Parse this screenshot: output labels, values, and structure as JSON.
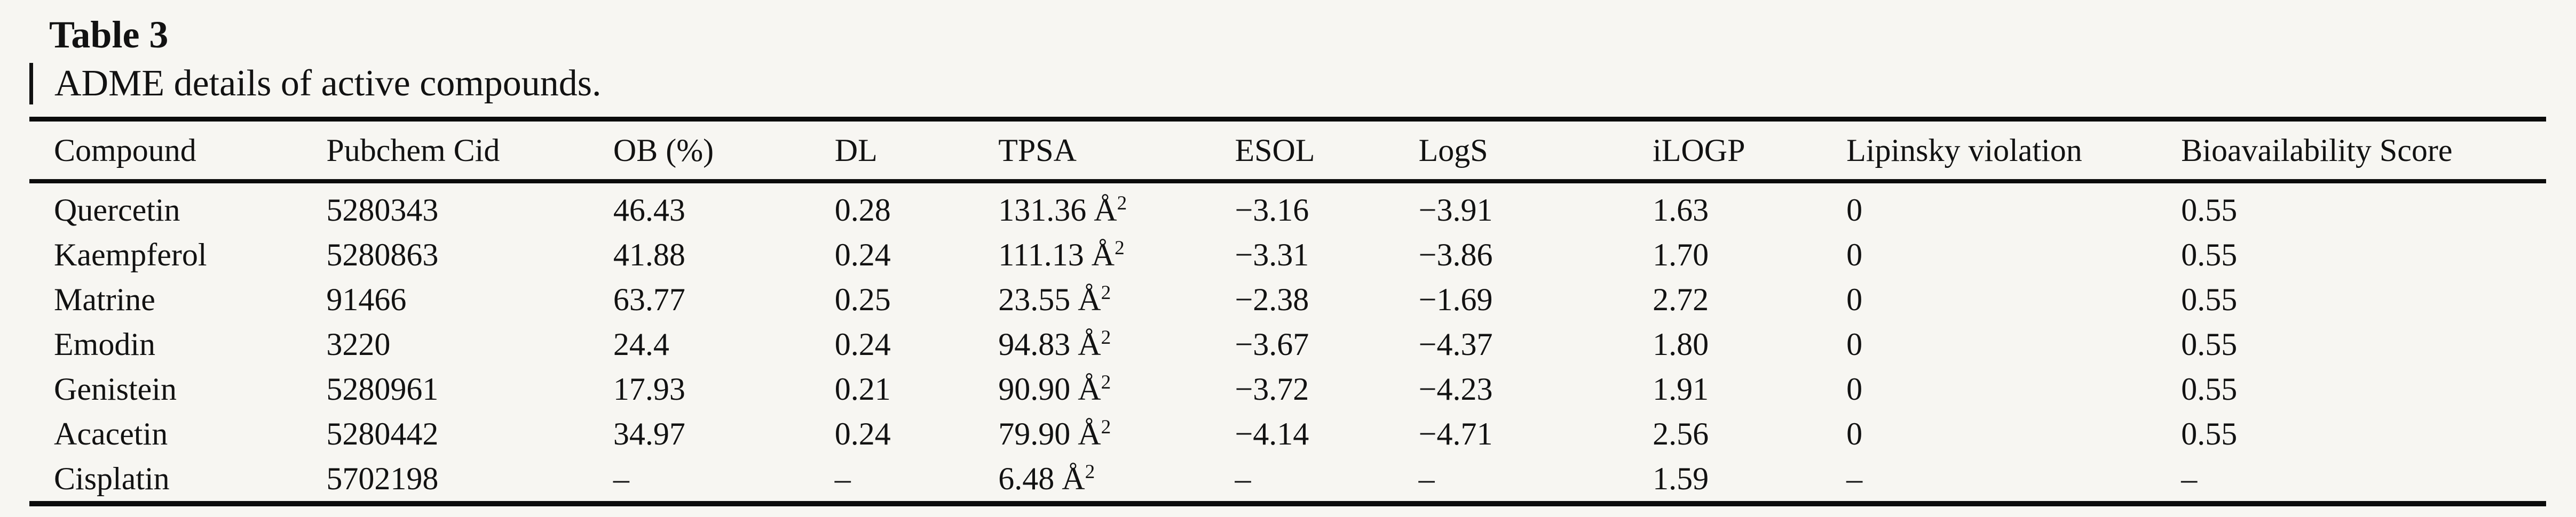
{
  "caption": {
    "label": "Table 3",
    "description": "ADME details of active compounds."
  },
  "table": {
    "columns": [
      "Compound",
      "Pubchem Cid",
      "OB (%)",
      "DL",
      "TPSA",
      "ESOL",
      "LogS",
      "iLOGP",
      "Lipinsky violation",
      "Bioavailability Score"
    ],
    "tpsa_unit": "Å",
    "tpsa_sup": "2",
    "rows": [
      {
        "compound": "Quercetin",
        "pubchem_cid": "5280343",
        "ob": "46.43",
        "dl": "0.28",
        "tpsa": "131.36",
        "esol": "−3.16",
        "logs": "−3.91",
        "ilogp": "1.63",
        "lipinsky": "0",
        "bioavailability": "0.55"
      },
      {
        "compound": "Kaempferol",
        "pubchem_cid": "5280863",
        "ob": "41.88",
        "dl": "0.24",
        "tpsa": "111.13",
        "esol": "−3.31",
        "logs": "−3.86",
        "ilogp": "1.70",
        "lipinsky": "0",
        "bioavailability": "0.55"
      },
      {
        "compound": "Matrine",
        "pubchem_cid": "91466",
        "ob": "63.77",
        "dl": "0.25",
        "tpsa": "23.55",
        "esol": "−2.38",
        "logs": "−1.69",
        "ilogp": "2.72",
        "lipinsky": "0",
        "bioavailability": "0.55"
      },
      {
        "compound": "Emodin",
        "pubchem_cid": "3220",
        "ob": "24.4",
        "dl": "0.24",
        "tpsa": "94.83",
        "esol": "−3.67",
        "logs": "−4.37",
        "ilogp": "1.80",
        "lipinsky": "0",
        "bioavailability": "0.55"
      },
      {
        "compound": "Genistein",
        "pubchem_cid": "5280961",
        "ob": "17.93",
        "dl": "0.21",
        "tpsa": "90.90",
        "esol": "−3.72",
        "logs": "−4.23",
        "ilogp": "1.91",
        "lipinsky": "0",
        "bioavailability": "0.55"
      },
      {
        "compound": "Acacetin",
        "pubchem_cid": "5280442",
        "ob": "34.97",
        "dl": "0.24",
        "tpsa": "79.90",
        "esol": "−4.14",
        "logs": "−4.71",
        "ilogp": "2.56",
        "lipinsky": "0",
        "bioavailability": "0.55"
      },
      {
        "compound": "Cisplatin",
        "pubchem_cid": "5702198",
        "ob": "–",
        "dl": "–",
        "tpsa": "6.48",
        "esol": "–",
        "logs": "–",
        "ilogp": "1.59",
        "lipinsky": "–",
        "bioavailability": "–"
      }
    ]
  }
}
